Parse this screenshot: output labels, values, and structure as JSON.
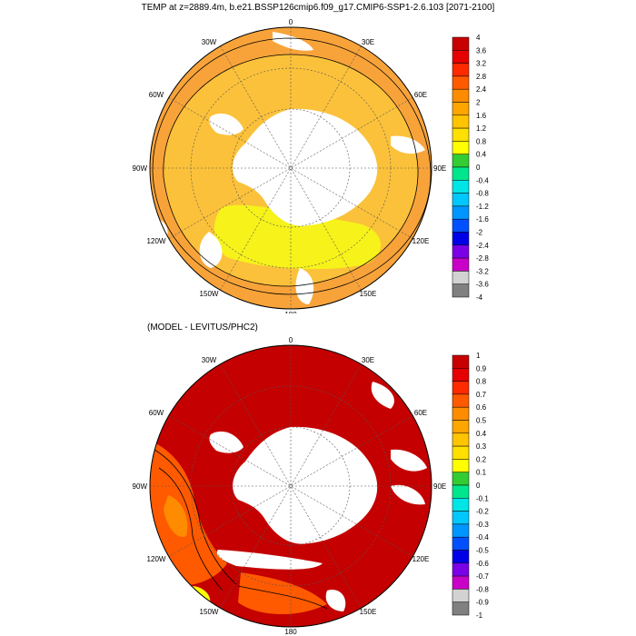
{
  "title": "TEMP at z=2889.4m, b.e21.BSSP126cmip6.f09_g17.CMIP6-SSP1-2.6.103 [2071-2100]",
  "subtitle": "(MODEL - LEVITUS/PHC2)",
  "longitude_labels": [
    "0",
    "30E",
    "60E",
    "90E",
    "120E",
    "150E",
    "180",
    "150W",
    "120W",
    "90W",
    "60W",
    "30W"
  ],
  "top_colorbar": {
    "labels": [
      "4",
      "3.6",
      "3.2",
      "2.8",
      "2.4",
      "2",
      "1.6",
      "1.2",
      "0.8",
      "0.4",
      "0",
      "-0.4",
      "-0.8",
      "-1.2",
      "-1.6",
      "-2",
      "-2.4",
      "-2.8",
      "-3.2",
      "-3.6",
      "-4"
    ],
    "colors": [
      "#c80000",
      "#e60000",
      "#ff2a00",
      "#ff5a00",
      "#ff8c00",
      "#ffa500",
      "#ffc400",
      "#ffe000",
      "#ffff00",
      "#33cc33",
      "#00e68c",
      "#00e6e6",
      "#00c8ff",
      "#0096ff",
      "#0050ff",
      "#0000e6",
      "#7a00e6",
      "#c800c8",
      "#d2d2d2",
      "#808080"
    ]
  },
  "bottom_colorbar": {
    "labels": [
      "1",
      "0.9",
      "0.8",
      "0.7",
      "0.6",
      "0.5",
      "0.4",
      "0.3",
      "0.2",
      "0.1",
      "0",
      "-0.1",
      "-0.2",
      "-0.3",
      "-0.4",
      "-0.5",
      "-0.6",
      "-0.7",
      "-0.8",
      "-0.9",
      "-1"
    ],
    "colors": [
      "#c80000",
      "#e60000",
      "#ff2a00",
      "#ff5a00",
      "#ff8c00",
      "#ffa500",
      "#ffc400",
      "#ffe000",
      "#ffff00",
      "#33cc33",
      "#00e68c",
      "#00e6e6",
      "#00c8ff",
      "#0096ff",
      "#0050ff",
      "#0000e6",
      "#7a00e6",
      "#c800c8",
      "#d2d2d2",
      "#808080"
    ]
  },
  "colors": {
    "land": "#ffffff",
    "top_fill_main": "#f8a33a",
    "top_fill_mid": "#fbc13a",
    "top_fill_cold": "#f6f21a",
    "bottom_fill_main": "#c40000",
    "bottom_fill_warm": "#ff5a00"
  }
}
